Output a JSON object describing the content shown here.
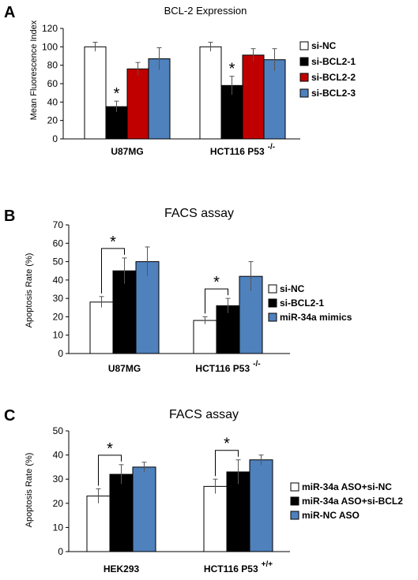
{
  "chart_data": [
    {
      "type": "bar",
      "panel_label": "A",
      "title": "BCL-2 Expression",
      "ylabel": "Mean Fluorescence Index",
      "xlabel": "",
      "ylim": [
        0,
        120
      ],
      "yticks": [
        0,
        20,
        40,
        60,
        80,
        100,
        120
      ],
      "categories": [
        "U87MG",
        "HCT116 P53"
      ],
      "category_superscripts": [
        "",
        "-/-"
      ],
      "series": [
        {
          "name": "si-NC",
          "color": "#ffffff",
          "values": [
            100,
            100
          ],
          "errors": [
            5,
            5
          ]
        },
        {
          "name": "si-BCL2-1",
          "color": "#000000",
          "values": [
            35,
            58
          ],
          "errors": [
            6,
            10
          ]
        },
        {
          "name": "si-BCL2-2",
          "color": "#c00000",
          "values": [
            76,
            91
          ],
          "errors": [
            7,
            7
          ]
        },
        {
          "name": "si-BCL2-3",
          "color": "#4f81bd",
          "values": [
            87,
            86
          ],
          "errors": [
            12,
            12
          ]
        }
      ],
      "annotations": [
        {
          "type": "star",
          "text": "*",
          "category": 0,
          "series": 1
        },
        {
          "type": "star",
          "text": "*",
          "category": 1,
          "series": 1
        }
      ],
      "legend": "right",
      "grid": false
    },
    {
      "type": "bar",
      "panel_label": "B",
      "title": "FACS assay",
      "ylabel": "Apoptosis Rate (%)",
      "xlabel": "",
      "ylim": [
        0,
        70
      ],
      "yticks": [
        0,
        10,
        20,
        30,
        40,
        50,
        60,
        70
      ],
      "categories": [
        "U87MG",
        "HCT116 P53"
      ],
      "category_superscripts": [
        "",
        "-/-"
      ],
      "series": [
        {
          "name": "si-NC",
          "color": "#ffffff",
          "values": [
            28,
            18
          ],
          "errors": [
            3,
            2
          ]
        },
        {
          "name": "si-BCL2-1",
          "color": "#000000",
          "values": [
            45,
            26
          ],
          "errors": [
            7,
            4
          ]
        },
        {
          "name": "miR-34a mimics",
          "color": "#4f81bd",
          "values": [
            50,
            42
          ],
          "errors": [
            8,
            8
          ]
        }
      ],
      "annotations": [
        {
          "type": "bracket-star",
          "text": "*",
          "category": 0,
          "from": 0,
          "to": 1
        },
        {
          "type": "bracket-star",
          "text": "*",
          "category": 1,
          "from": 0,
          "to": 1
        }
      ],
      "legend": "right",
      "grid": false
    },
    {
      "type": "bar",
      "panel_label": "C",
      "title": "FACS assay",
      "ylabel": "Apoptosis Rate (%)",
      "xlabel": "",
      "ylim": [
        0,
        50
      ],
      "yticks": [
        0,
        10,
        20,
        30,
        40,
        50
      ],
      "categories": [
        "HEK293",
        "HCT116 P53"
      ],
      "category_superscripts": [
        "",
        "+/+"
      ],
      "series": [
        {
          "name": "miR-34a ASO+si-NC",
          "color": "#ffffff",
          "values": [
            23,
            27
          ],
          "errors": [
            3,
            3
          ]
        },
        {
          "name": "miR-34a ASO+si-BCL2",
          "color": "#000000",
          "values": [
            32,
            33
          ],
          "errors": [
            4,
            5
          ]
        },
        {
          "name": "miR-NC ASO",
          "color": "#4f81bd",
          "values": [
            35,
            38
          ],
          "errors": [
            2,
            2
          ]
        }
      ],
      "annotations": [
        {
          "type": "bracket-star",
          "text": "*",
          "category": 0,
          "from": 0,
          "to": 1
        },
        {
          "type": "bracket-star",
          "text": "*",
          "category": 1,
          "from": 0,
          "to": 1
        }
      ],
      "legend": "right",
      "grid": false
    }
  ]
}
